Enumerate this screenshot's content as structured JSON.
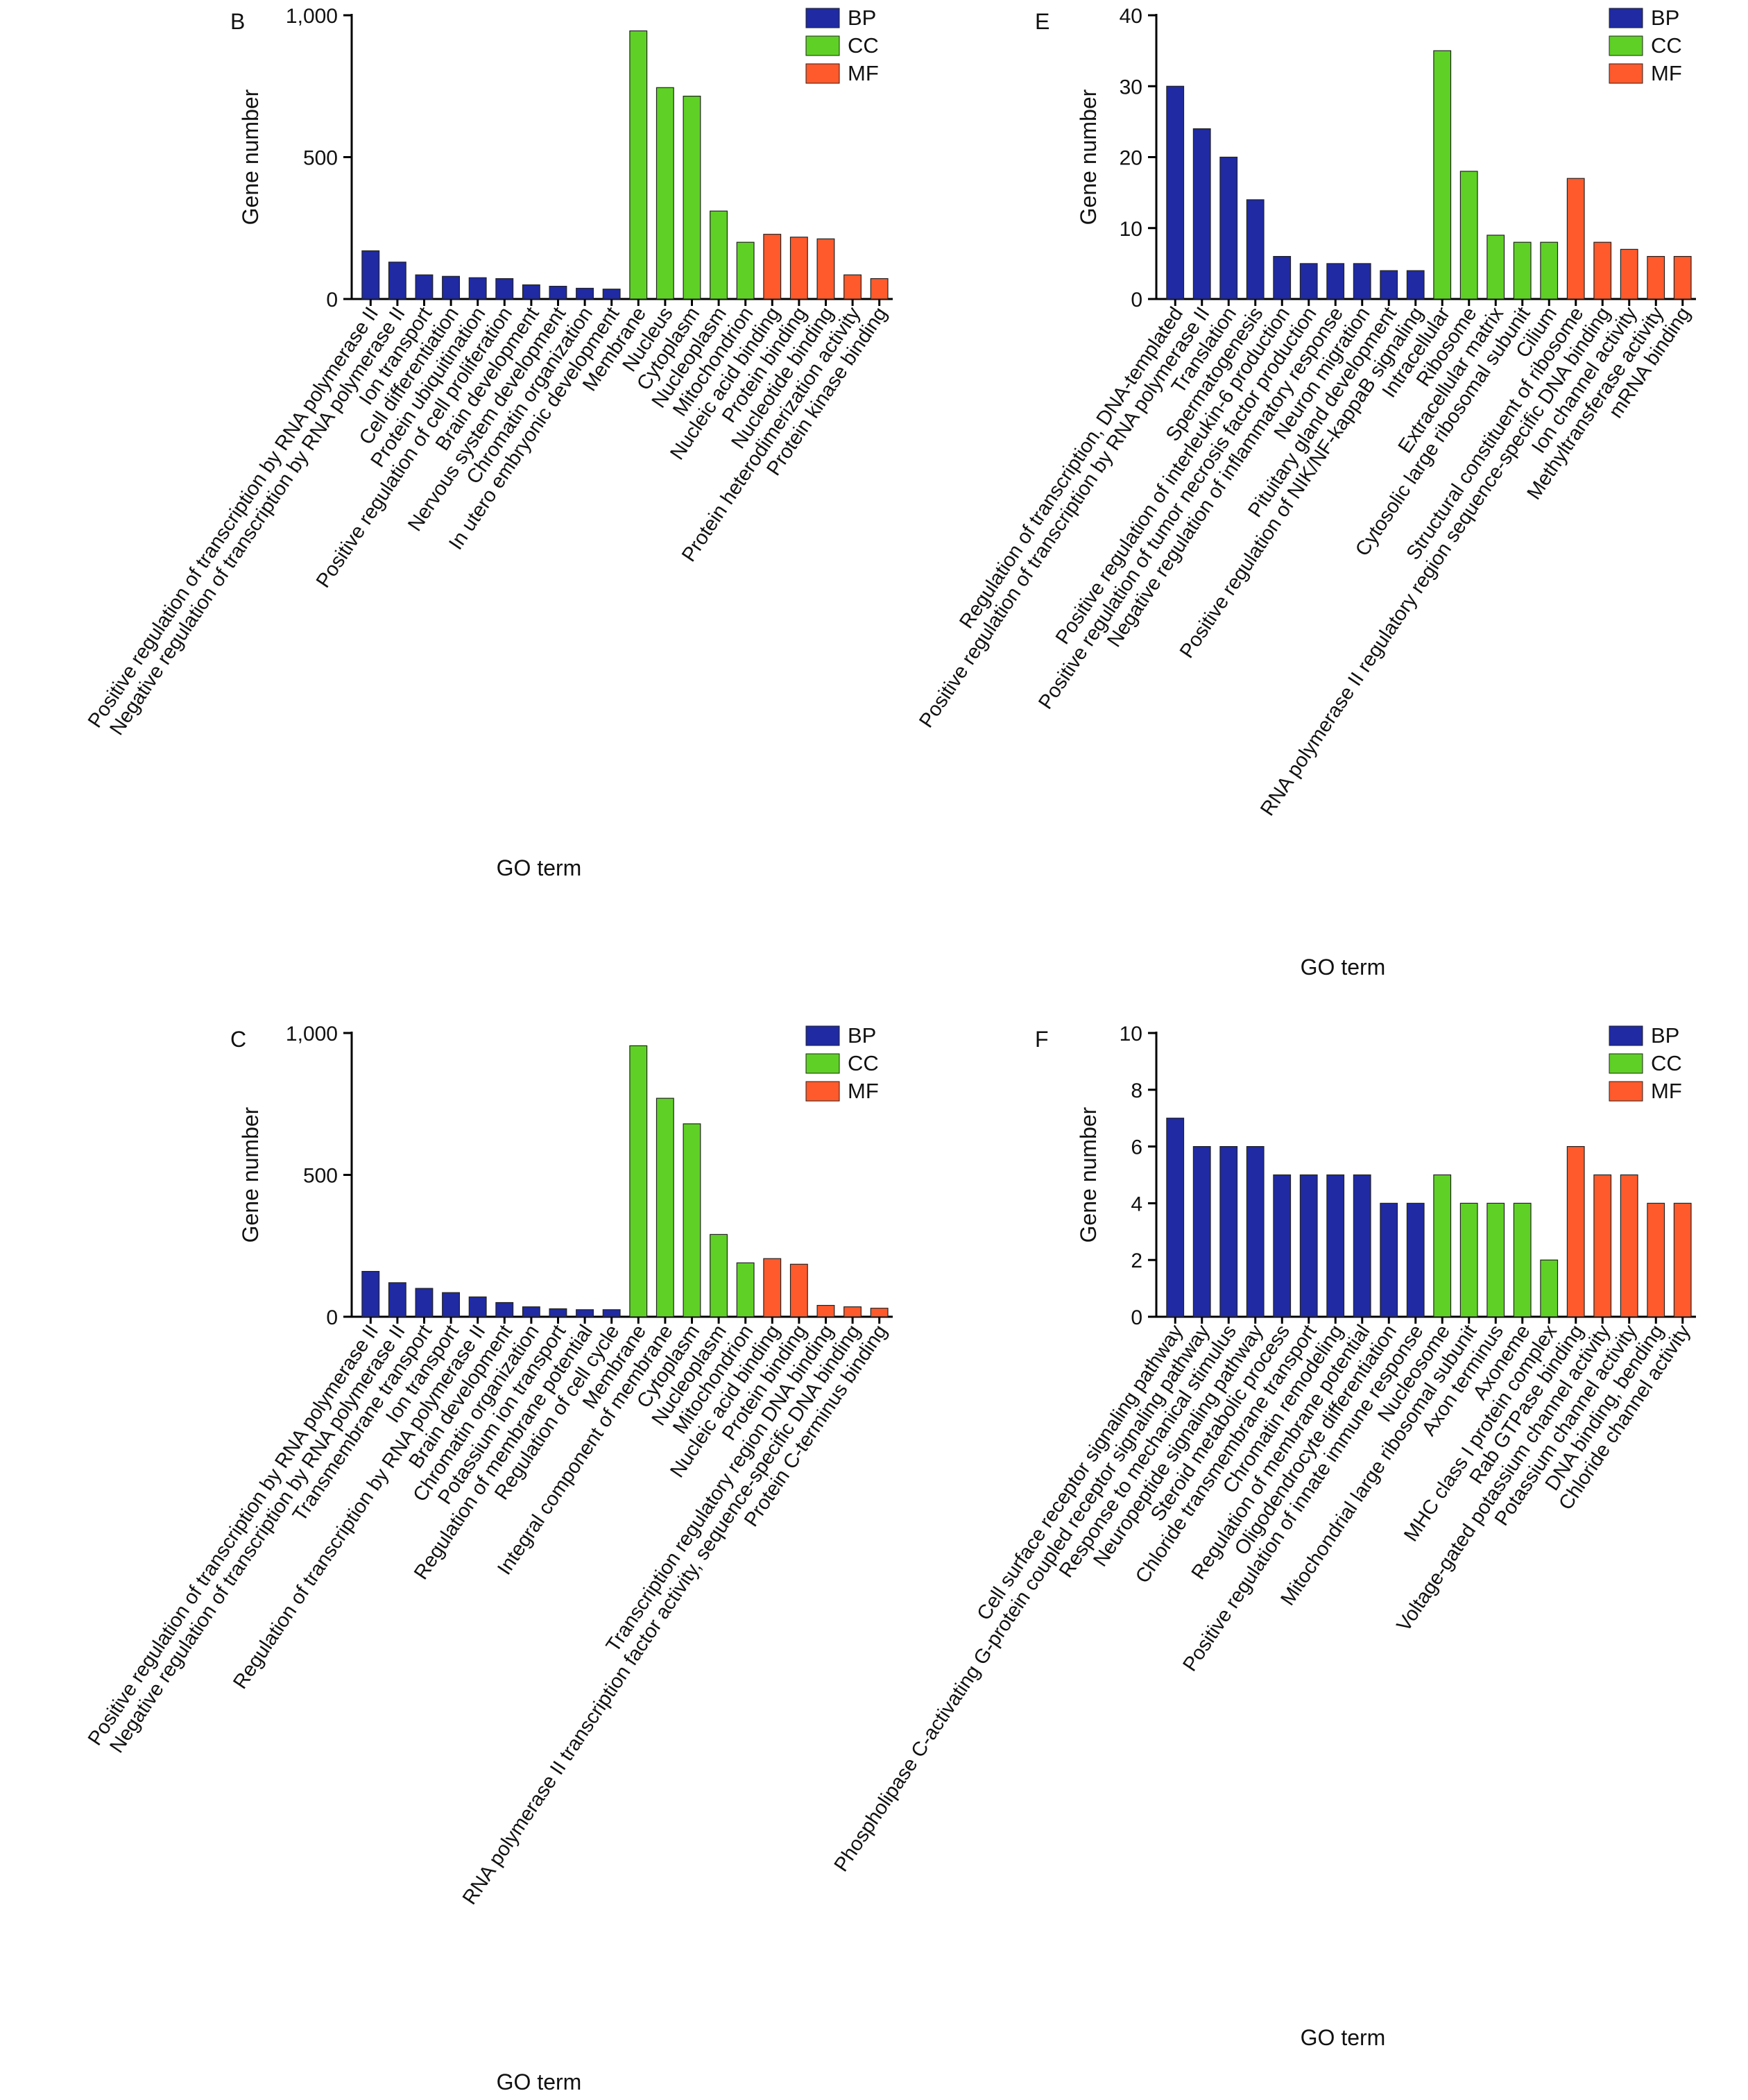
{
  "colors": {
    "BP": "#1f2aa3",
    "CC": "#5fd126",
    "MF": "#ff5a2c"
  },
  "legend": [
    "BP",
    "CC",
    "MF"
  ],
  "chart_data": [
    {
      "panel": "B",
      "type": "bar",
      "ylabel": "Gene number",
      "xlabel": "GO term",
      "ylim": [
        0,
        1000
      ],
      "yticks": [
        0,
        500,
        1000
      ],
      "ytick_labels": [
        "0",
        "500",
        "1,000"
      ],
      "categories": [
        "Positive regulation of transcription by RNA polymerase II",
        "Negative regulation of transcription by RNA polymerase II",
        "Ion transport",
        "Cell differentiation",
        "Protein ubiquitination",
        "Positive regulation of cell proliferation",
        "Brain development",
        "Nervous system development",
        "Chromatin organization",
        "In utero embryonic development",
        "Membrane",
        "Nucleus",
        "Cytoplasm",
        "Nucleoplasm",
        "Mitochondrion",
        "Nucleic acid binding",
        "Protein binding",
        "Nucleotide binding",
        "Protein heterodimerization activity",
        "Protein kinase binding"
      ],
      "groups": [
        "BP",
        "BP",
        "BP",
        "BP",
        "BP",
        "BP",
        "BP",
        "BP",
        "BP",
        "BP",
        "CC",
        "CC",
        "CC",
        "CC",
        "CC",
        "MF",
        "MF",
        "MF",
        "MF",
        "MF"
      ],
      "values": [
        170,
        130,
        85,
        80,
        75,
        72,
        50,
        45,
        38,
        35,
        945,
        745,
        715,
        310,
        200,
        228,
        218,
        212,
        85,
        72
      ]
    },
    {
      "panel": "E",
      "type": "bar",
      "ylabel": "Gene number",
      "xlabel": "GO term",
      "ylim": [
        0,
        40
      ],
      "yticks": [
        0,
        10,
        20,
        30,
        40
      ],
      "ytick_labels": [
        "0",
        "10",
        "20",
        "30",
        "40"
      ],
      "categories": [
        "Regulation of transcription, DNA-templated",
        "Positive regulation of transcription by RNA polymerase II",
        "Translation",
        "Spermatogenesis",
        "Positive regulation of interleukin-6 production",
        "Positive regulation of tumor necrosis factor production",
        "Negative regulation of inflammatory response",
        "Neuron migration",
        "Pituitary gland development",
        "Positive regulation of NIK/NF-kappaB signaling",
        "Intracellular",
        "Ribosome",
        "Extracellular matrix",
        "Cytosolic large ribosomal subunit",
        "Cilium",
        "Structural constituent of ribosome",
        "RNA polymerase II regulatory region sequence-specific DNA binding",
        "Ion channel activity",
        "Methyltransferase activity",
        "mRNA binding"
      ],
      "groups": [
        "BP",
        "BP",
        "BP",
        "BP",
        "BP",
        "BP",
        "BP",
        "BP",
        "BP",
        "BP",
        "CC",
        "CC",
        "CC",
        "CC",
        "CC",
        "MF",
        "MF",
        "MF",
        "MF",
        "MF"
      ],
      "values": [
        30,
        24,
        20,
        14,
        6,
        5,
        5,
        5,
        4,
        4,
        35,
        18,
        9,
        8,
        8,
        17,
        8,
        7,
        6,
        6
      ]
    },
    {
      "panel": "C",
      "type": "bar",
      "ylabel": "Gene number",
      "xlabel": "GO term",
      "ylim": [
        0,
        1000
      ],
      "yticks": [
        0,
        500,
        1000
      ],
      "ytick_labels": [
        "0",
        "500",
        "1,000"
      ],
      "categories": [
        "Positive regulation of transcription by RNA polymerase II",
        "Negative regulation of transcription by RNA polymerase II",
        "Transmembrane transport",
        "Ion transport",
        "Regulation of transcription by RNA polymerase II",
        "Brain development",
        "Chromatin organization",
        "Potassium ion transport",
        "Regulation of membrane potential",
        "Regulation of cell cycle",
        "Membrane",
        "Integral component of membrane",
        "Cytoplasm",
        "Nucleoplasm",
        "Mitochondrion",
        "Nucleic acid binding",
        "Protein binding",
        "Transcription regulatory region DNA binding",
        "RNA polymerase II transcription factor activity, sequence-specific DNA binding",
        "Protein C-terminus binding"
      ],
      "groups": [
        "BP",
        "BP",
        "BP",
        "BP",
        "BP",
        "BP",
        "BP",
        "BP",
        "BP",
        "BP",
        "CC",
        "CC",
        "CC",
        "CC",
        "CC",
        "MF",
        "MF",
        "MF",
        "MF",
        "MF"
      ],
      "values": [
        160,
        120,
        100,
        85,
        70,
        50,
        35,
        28,
        25,
        25,
        955,
        770,
        680,
        290,
        190,
        205,
        185,
        40,
        35,
        30
      ]
    },
    {
      "panel": "F",
      "type": "bar",
      "ylabel": "Gene number",
      "xlabel": "GO term",
      "ylim": [
        0,
        10
      ],
      "yticks": [
        0,
        2,
        4,
        6,
        8,
        10
      ],
      "ytick_labels": [
        "0",
        "2",
        "4",
        "6",
        "8",
        "10"
      ],
      "categories": [
        "Cell surface receptor signaling pathway",
        "Phospholipase C-activating G-protein coupled receptor signaling pathway",
        "Response to mechanical stimulus",
        "Neuropeptide signaling pathway",
        "Steroid metabolic process",
        "Chloride transmembrane transport",
        "Chromatin remodeling",
        "Regulation of membrane potential",
        "Oligodendrocyte differentiation",
        "Positive regulation of innate immune response",
        "Nucleosome",
        "Mitochondrial large ribosomal subunit",
        "Axon terminus",
        "Axoneme",
        "MHC class I protein complex",
        "Rab GTPase binding",
        "Voltage-gated potassium channel activity",
        "Potassium channel activity",
        "DNA binding, bending",
        "Chloride channel activity"
      ],
      "groups": [
        "BP",
        "BP",
        "BP",
        "BP",
        "BP",
        "BP",
        "BP",
        "BP",
        "BP",
        "BP",
        "CC",
        "CC",
        "CC",
        "CC",
        "CC",
        "MF",
        "MF",
        "MF",
        "MF",
        "MF"
      ],
      "values": [
        7,
        6,
        6,
        6,
        5,
        5,
        5,
        5,
        4,
        4,
        5,
        4,
        4,
        4,
        2,
        6,
        5,
        5,
        4,
        4
      ]
    }
  ]
}
